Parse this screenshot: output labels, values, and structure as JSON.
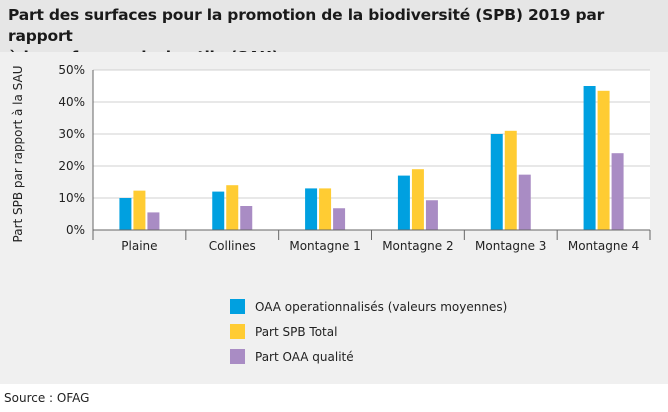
{
  "title_line1": "Part des surfaces pour la promotion de la biodiversité (SPB) 2019 par rapport",
  "title_line2": "à la surface agricole utile (SAU), par zone",
  "source": "Source : OFAG",
  "chart_data": {
    "type": "bar",
    "title": "Part des surfaces pour la promotion de la biodiversité (SPB) 2019 par rapport à la surface agricole utile (SAU), par zone",
    "ylabel": "Part SPB par rapport à la SAU",
    "xlabel": "",
    "ylim": [
      0,
      50
    ],
    "yticks": [
      0,
      10,
      20,
      30,
      40,
      50
    ],
    "ytick_labels": [
      "0%",
      "10%",
      "20%",
      "30%",
      "40%",
      "50%"
    ],
    "categories": [
      "Plaine",
      "Collines",
      "Montagne 1",
      "Montagne 2",
      "Montagne 3",
      "Montagne 4"
    ],
    "legend_position": "bottom",
    "series": [
      {
        "name": "OAA operationnalisés (valeurs moyennes)",
        "color": "#00a0e0",
        "values": [
          10,
          12,
          13,
          17,
          30,
          45
        ]
      },
      {
        "name": "Part SPB Total",
        "color": "#ffcc33",
        "values": [
          12.3,
          14,
          13,
          19,
          31,
          43.5
        ]
      },
      {
        "name": "Part OAA qualité",
        "color": "#a98cc4",
        "values": [
          5.5,
          7.5,
          6.8,
          9.3,
          17.3,
          24
        ]
      }
    ]
  }
}
